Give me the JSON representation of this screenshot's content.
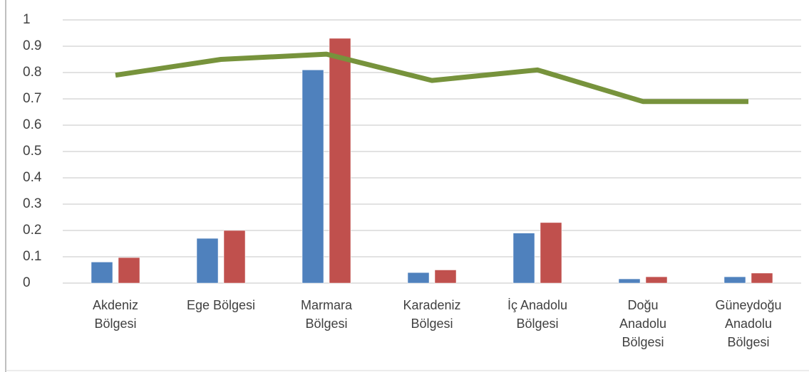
{
  "chart_data": {
    "type": "bar_line",
    "categories": [
      "Akdeniz Bölgesi",
      "Ege Bölgesi",
      "Marmara Bölgesi",
      "Karadeniz Bölgesi",
      "İç Anadolu Bölgesi",
      "Doğu Anadolu Bölgesi",
      "Güneydoğu Anadolu Bölgesi"
    ],
    "series": [
      {
        "type": "bar",
        "color": "#4f81bd",
        "values": [
          0.08,
          0.17,
          0.81,
          0.04,
          0.19,
          0.016,
          0.024
        ]
      },
      {
        "type": "bar",
        "color": "#c0504d",
        "values": [
          0.097,
          0.2,
          0.93,
          0.05,
          0.23,
          0.024,
          0.038
        ]
      },
      {
        "type": "line",
        "color": "#77933c",
        "values": [
          0.79,
          0.85,
          0.87,
          0.77,
          0.81,
          0.69,
          0.69
        ]
      }
    ],
    "ylim": [
      0,
      1
    ],
    "yticks": [
      0,
      0.1,
      0.2,
      0.3,
      0.4,
      0.5,
      0.6,
      0.7,
      0.8,
      0.9,
      1
    ],
    "grid": true
  }
}
